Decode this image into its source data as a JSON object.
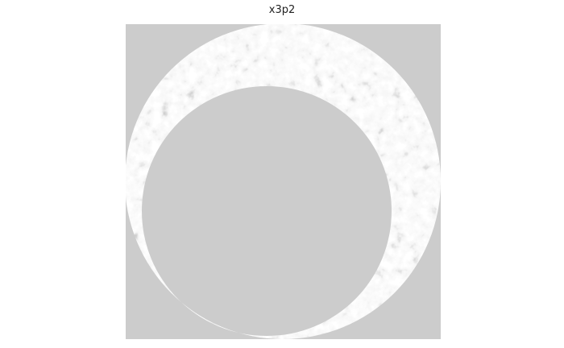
{
  "title": "x3p2"
}
